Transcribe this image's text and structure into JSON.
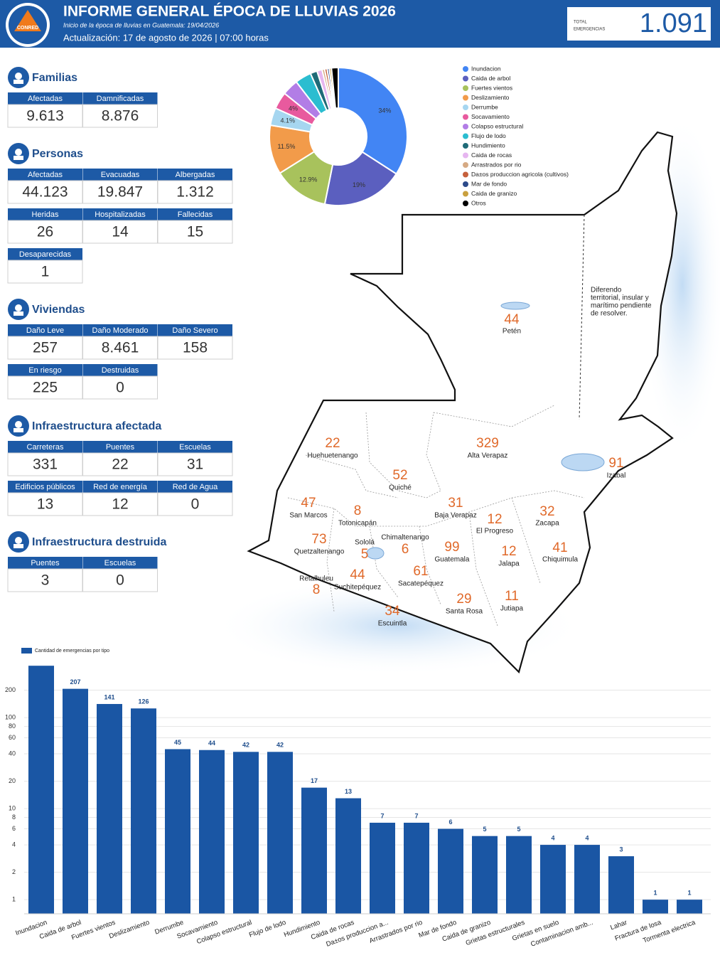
{
  "header": {
    "logo": "CONRED",
    "title": "INFORME GENERAL ÉPOCA DE LLUVIAS 2026",
    "subtitle": "Inicio de la época de lluvias en Guatemala: 19/04/2026",
    "update": "Actualización: 17 de agosto de 2026 | 07:00 horas",
    "total_label": [
      "TOTAL",
      "EMERGENCIAS"
    ],
    "total": "1.091"
  },
  "panels": [
    {
      "title": "Familias",
      "rows": [
        [
          {
            "label": "Afectadas",
            "value": "9.613"
          },
          {
            "label": "Damnificadas",
            "value": "8.876"
          }
        ]
      ]
    },
    {
      "title": "Personas",
      "rows": [
        [
          {
            "label": "Afectadas",
            "value": "44.123"
          },
          {
            "label": "Evacuadas",
            "value": "19.847"
          },
          {
            "label": "Albergadas",
            "value": "1.312"
          }
        ],
        [
          {
            "label": "Heridas",
            "value": "26"
          },
          {
            "label": "Hospitalizadas",
            "value": "14"
          },
          {
            "label": "Fallecidas",
            "value": "15"
          }
        ],
        [
          {
            "label": "Desaparecidas",
            "value": "1"
          }
        ]
      ]
    },
    {
      "title": "Viviendas",
      "rows": [
        [
          {
            "label": "Daño Leve",
            "value": "257"
          },
          {
            "label": "Daño Moderado",
            "value": "8.461"
          },
          {
            "label": "Daño Severo",
            "value": "158"
          }
        ],
        [
          {
            "label": "En riesgo",
            "value": "225"
          },
          {
            "label": "Destruidas",
            "value": "0"
          }
        ]
      ]
    },
    {
      "title": "Infraestructura afectada",
      "rows": [
        [
          {
            "label": "Carreteras",
            "value": "331"
          },
          {
            "label": "Puentes",
            "value": "22"
          },
          {
            "label": "Escuelas",
            "value": "31"
          }
        ],
        [
          {
            "label": "Edificios públicos",
            "value": "13"
          },
          {
            "label": "Red de energía",
            "value": "12"
          },
          {
            "label": "Red de Agua",
            "value": "0"
          }
        ]
      ]
    },
    {
      "title": "Infraestructura destruida",
      "rows": [
        [
          {
            "label": "Puentes",
            "value": "3"
          },
          {
            "label": "Escuelas",
            "value": "0"
          }
        ]
      ]
    }
  ],
  "map": {
    "note": [
      "Diferendo",
      "territorial, insular y",
      "marítimo pendiente",
      "de resolver."
    ],
    "departments": [
      {
        "name": "Petén",
        "value": 44
      },
      {
        "name": "Huehuetenango",
        "value": 22
      },
      {
        "name": "Alta Verapaz",
        "value": 329
      },
      {
        "name": "Quiché",
        "value": 52
      },
      {
        "name": "Izabal",
        "value": 91
      },
      {
        "name": "San Marcos",
        "value": 47
      },
      {
        "name": "Totonicapán",
        "value": 8
      },
      {
        "name": "Baja Verapaz",
        "value": 31
      },
      {
        "name": "El Progreso",
        "value": 12
      },
      {
        "name": "Zacapa",
        "value": 32
      },
      {
        "name": "Quetzaltenango",
        "value": 73
      },
      {
        "name": "Sololá",
        "value": 5
      },
      {
        "name": "Chimaltenango",
        "value": 6
      },
      {
        "name": "Guatemala",
        "value": 99
      },
      {
        "name": "Jalapa",
        "value": 12
      },
      {
        "name": "Chiquimula",
        "value": 41
      },
      {
        "name": "Retalhuleu",
        "value": 8
      },
      {
        "name": "Suchitepéquez",
        "value": 44
      },
      {
        "name": "Sacatepéquez",
        "value": 61
      },
      {
        "name": "Escuintla",
        "value": 34
      },
      {
        "name": "Santa Rosa",
        "value": 29
      },
      {
        "name": "Jutiapa",
        "value": 11
      }
    ]
  },
  "chart_data": [
    {
      "type": "pie",
      "categories": [
        "Inundacion",
        "Caida de arbol",
        "Fuertes vientos",
        "Deslizamiento",
        "Derrumbe",
        "Socavamiento",
        "Colapso estructural",
        "Flujo de lodo",
        "Hundimiento",
        "Caida de rocas",
        "Arrastrados por rio",
        "Da±os produccion agricola (cultivos)",
        "Mar de fondo",
        "Caida de granizo",
        "Otros"
      ],
      "values": [
        34,
        19,
        12.9,
        11.5,
        4.1,
        4,
        3.8,
        3.8,
        1.6,
        1.2,
        0.6,
        0.6,
        0.5,
        0.5,
        1.6
      ],
      "value_labels": [
        "34%",
        "19%",
        "12.9%",
        "11.5%",
        "4.1%",
        "4%",
        null,
        null,
        null,
        null,
        null,
        null,
        null,
        null,
        null
      ],
      "colors": [
        "#4285f4",
        "#5b5fbf",
        "#a8c25c",
        "#f29b4a",
        "#a6d6f0",
        "#e85a9e",
        "#b27de6",
        "#2bbdd0",
        "#1f6b78",
        "#e6b6f0",
        "#d6aa84",
        "#c6603c",
        "#2c4a8a",
        "#c9a03e",
        "#000000"
      ]
    },
    {
      "type": "bar",
      "log_scale": true,
      "grid": true,
      "categories": [
        "Inundacion",
        "Caida de arbol",
        "Fuertes vientos",
        "Deslizamiento",
        "Derrumbe",
        "Socavamiento",
        "Colapso estructural",
        "Flujo de lodo",
        "Hundimiento",
        "Caida de rocas",
        "Da±os produccion a...",
        "Arrastrados por rio",
        "Mar de fondo",
        "Caida de granizo",
        "Grietas estructurales",
        "Grietas en suelo",
        "Contaminacion amb...",
        "Lahar",
        "Fractura de losa",
        "Tormenta electrica"
      ],
      "series": [
        {
          "name": "Cantidad de emergencias por tipo",
          "color": "#1a56a4",
          "values": [
            371,
            207,
            141,
            126,
            45,
            44,
            42,
            42,
            17,
            13,
            7,
            7,
            6,
            5,
            5,
            4,
            4,
            3,
            1,
            1
          ],
          "value_labels": [
            null,
            "207",
            "141",
            "126",
            "45",
            "44",
            "42",
            "42",
            "17",
            "13",
            "7",
            "7",
            "6",
            "5",
            "5",
            "4",
            "4",
            "3",
            "1",
            "1"
          ]
        }
      ],
      "ylim": [
        0.7,
        400
      ],
      "yticks": [
        1,
        2,
        4,
        6,
        8,
        10,
        20,
        40,
        60,
        80,
        100,
        200
      ]
    }
  ]
}
